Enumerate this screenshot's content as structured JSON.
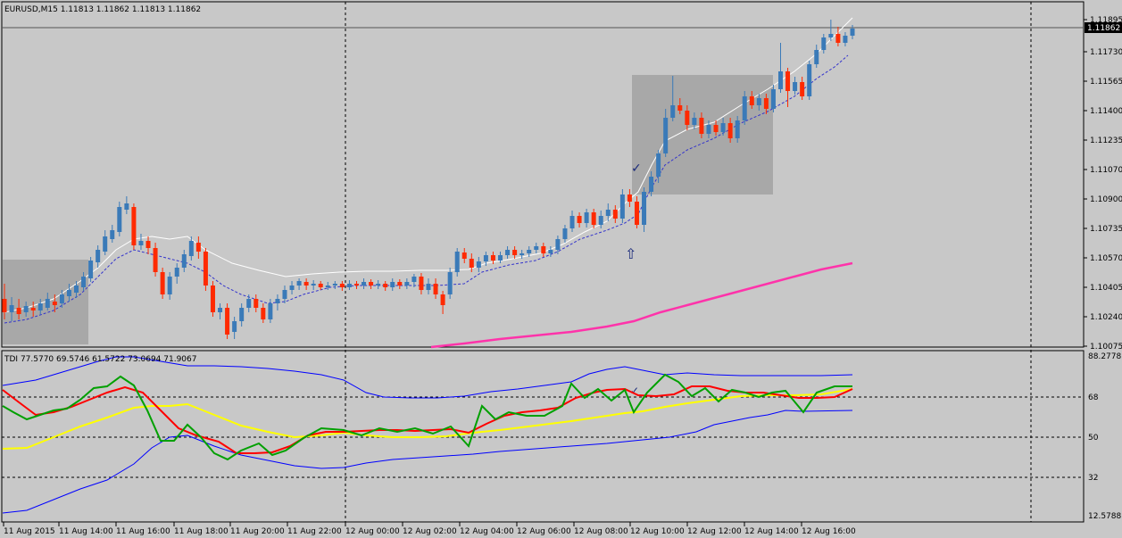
{
  "main": {
    "header": "EURUSD,M15  1.11813 1.11862 1.11813 1.11862",
    "current_price": "1.11862",
    "price_labels": [
      "1.11895",
      "1.11730",
      "1.11565",
      "1.11400",
      "1.11235",
      "1.11070",
      "1.10900",
      "1.10735",
      "1.10570",
      "1.10405",
      "1.10240",
      "1.10075"
    ]
  },
  "indicator": {
    "header": "TDI 77.5770 69.5746 61.5722 73.0694 71.9067",
    "levels": [
      "88.2778",
      "68",
      "50",
      "32",
      "12.5788"
    ]
  },
  "time_labels": [
    "11 Aug 2015",
    "11 Aug 14:00",
    "11 Aug 16:00",
    "11 Aug 18:00",
    "11 Aug 20:00",
    "11 Aug 22:00",
    "12 Aug 00:00",
    "12 Aug 02:00",
    "12 Aug 04:00",
    "12 Aug 06:00",
    "12 Aug 08:00",
    "12 Aug 10:00",
    "12 Aug 12:00",
    "12 Aug 14:00",
    "12 Aug 16:00"
  ],
  "colors": {
    "background": "#c8c8c8",
    "bull_candle": "#3a7ab8",
    "bear_candle": "#ff2a00",
    "ma_fast": "#ffffff",
    "ma_band": "#3333cc",
    "ma_slow": "#ff33aa",
    "tdi_green": "#00a000",
    "tdi_red": "#ff0000",
    "tdi_yellow": "#ffff00",
    "tdi_band": "#0000ff",
    "arrow": "#1a2a7a",
    "box": "#a8a8a8"
  },
  "icons": [
    "check-mark-icon",
    "up-arrow-icon"
  ]
}
